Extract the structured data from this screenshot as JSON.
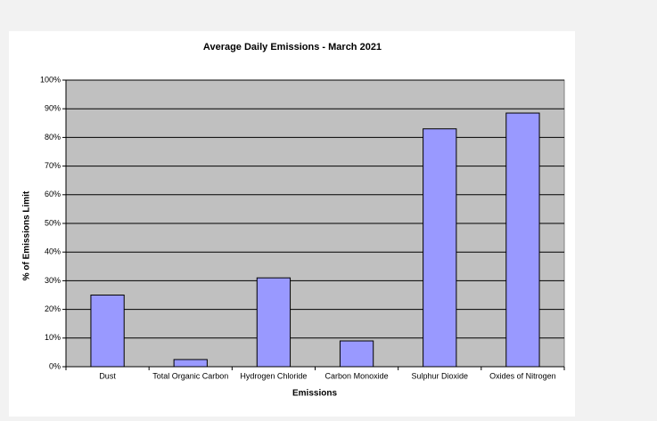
{
  "chart_data": {
    "type": "bar",
    "title": "Average Daily Emissions - March 2021",
    "x_label": "Emissions",
    "y_label": "% of Emissions Limit",
    "categories": [
      "Dust",
      "Total Organic Carbon",
      "Hydrogen Chloride",
      "Carbon Monoxide",
      "Sulphur Dioxide",
      "Oxides of Nitrogen"
    ],
    "values": [
      25,
      2.5,
      31,
      9,
      83,
      88.5
    ],
    "color": "#9999ff",
    "ylim": [
      0,
      100
    ],
    "yticks": [
      {
        "value": 0,
        "label": "0%"
      },
      {
        "value": 10,
        "label": "10%"
      },
      {
        "value": 20,
        "label": "20%"
      },
      {
        "value": 30,
        "label": "30%"
      },
      {
        "value": 40,
        "label": "40%"
      },
      {
        "value": 50,
        "label": "50%"
      },
      {
        "value": 60,
        "label": "60%"
      },
      {
        "value": 70,
        "label": "70%"
      },
      {
        "value": 80,
        "label": "80%"
      },
      {
        "value": 90,
        "label": "90%"
      },
      {
        "value": 100,
        "label": "100%"
      }
    ],
    "grid": true
  }
}
